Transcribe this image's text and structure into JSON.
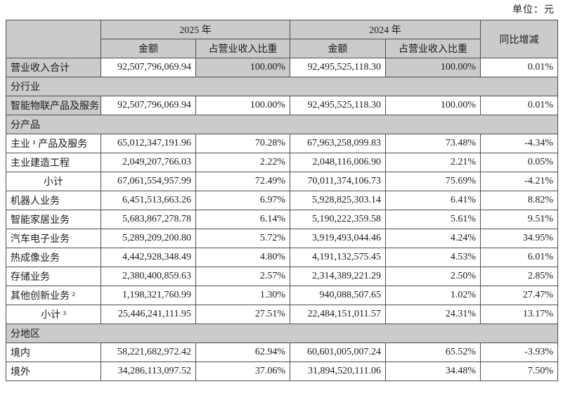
{
  "unit_label": "单位：元",
  "table": {
    "year_groups": [
      "2025 年",
      "2024 年"
    ],
    "sub_headers": [
      "金额",
      "占营业收入比重",
      "金额",
      "占营业收入比重"
    ],
    "yoy_header": "同比增减",
    "rows": [
      {
        "type": "data",
        "label": "营业收入合计",
        "label_shaded": true,
        "shaded_cells": [
          1,
          3
        ],
        "cells": [
          "92,507,796,069.94",
          "100.00%",
          "92,495,525,118.30",
          "100.00%",
          "0.01%"
        ]
      },
      {
        "type": "section",
        "label": "分行业"
      },
      {
        "type": "data",
        "label": "智能物联产品及服务",
        "label_shaded": true,
        "cells": [
          "92,507,796,069.94",
          "100.00%",
          "92,495,525,118.30",
          "100.00%",
          "0.01%"
        ]
      },
      {
        "type": "section",
        "label": "分产品"
      },
      {
        "type": "data",
        "label": "主业 ¹ 产品及服务",
        "cells": [
          "65,012,347,191.96",
          "70.28%",
          "67,963,258,099.83",
          "73.48%",
          "-4.34%"
        ]
      },
      {
        "type": "data",
        "label": "主业建造工程",
        "cells": [
          "2,049,207,766.03",
          "2.22%",
          "2,048,116,006.90",
          "2.21%",
          "0.05%"
        ]
      },
      {
        "type": "data",
        "label": "小计",
        "center": true,
        "cells": [
          "67,061,554,957.99",
          "72.49%",
          "70,011,374,106.73",
          "75.69%",
          "-4.21%"
        ]
      },
      {
        "type": "data",
        "label": "机器人业务",
        "cells": [
          "6,451,513,663.26",
          "6.97%",
          "5,928,825,303.14",
          "6.41%",
          "8.82%"
        ]
      },
      {
        "type": "data",
        "label": "智能家居业务",
        "cells": [
          "5,683,867,278.78",
          "6.14%",
          "5,190,222,359.58",
          "5.61%",
          "9.51%"
        ]
      },
      {
        "type": "data",
        "label": "汽车电子业务",
        "cells": [
          "5,289,209,200.80",
          "5.72%",
          "3,919,493,044.46",
          "4.24%",
          "34.95%"
        ]
      },
      {
        "type": "data",
        "label": "热成像业务",
        "cells": [
          "4,442,928,348.49",
          "4.80%",
          "4,191,132,575.45",
          "4.53%",
          "6.01%"
        ]
      },
      {
        "type": "data",
        "label": "存储业务",
        "cells": [
          "2,380,400,859.63",
          "2.57%",
          "2,314,389,221.29",
          "2.50%",
          "2.85%"
        ]
      },
      {
        "type": "data",
        "label": "其他创新业务 ²",
        "cells": [
          "1,198,321,760.99",
          "1.30%",
          "940,088,507.65",
          "1.02%",
          "27.47%"
        ]
      },
      {
        "type": "data",
        "label": "小计 ³",
        "center": true,
        "cells": [
          "25,446,241,111.95",
          "27.51%",
          "22,484,151,011.57",
          "24.31%",
          "13.17%"
        ]
      },
      {
        "type": "section",
        "label": "分地区"
      },
      {
        "type": "data",
        "label": "境内",
        "cells": [
          "58,221,682,972.42",
          "62.94%",
          "60,601,005,007.24",
          "65.52%",
          "-3.93%"
        ]
      },
      {
        "type": "data",
        "label": "境外",
        "cells": [
          "34,286,113,097.52",
          "37.06%",
          "31,894,520,111.06",
          "34.48%",
          "7.50%"
        ]
      }
    ]
  }
}
